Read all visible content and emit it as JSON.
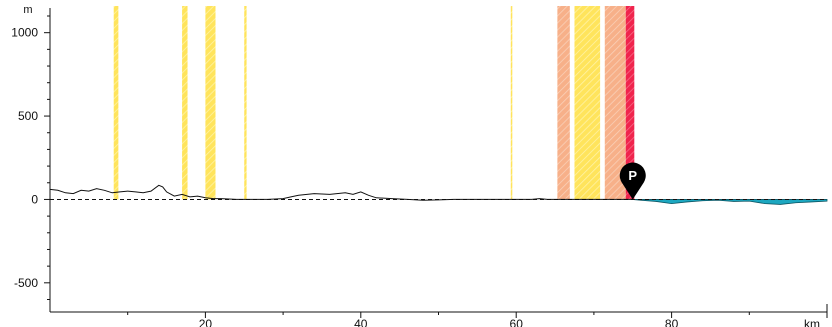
{
  "chart_data": {
    "type": "area",
    "title": "",
    "xlabel": "",
    "ylabel": "",
    "x_unit": "km",
    "y_unit": "m",
    "xlim": [
      0,
      100
    ],
    "ylim": [
      -675,
      1160
    ],
    "x_ticks": [
      20,
      40,
      60,
      80
    ],
    "y_ticks": [
      -500,
      0,
      500,
      1000
    ],
    "grid": false,
    "legend": "none",
    "colors": {
      "yellow": "#FFE45C",
      "orange": "#F7B089",
      "red": "#F0244D",
      "water": "#1CA7C0",
      "profile": "#111111",
      "marker": "#000000"
    },
    "zones": [
      {
        "x0": 8.2,
        "x1": 8.8,
        "level": "yellow"
      },
      {
        "x0": 17.0,
        "x1": 17.7,
        "level": "yellow"
      },
      {
        "x0": 20.0,
        "x1": 21.3,
        "level": "yellow"
      },
      {
        "x0": 25.0,
        "x1": 25.3,
        "level": "yellow"
      },
      {
        "x0": 59.3,
        "x1": 59.5,
        "level": "yellow"
      },
      {
        "x0": 65.3,
        "x1": 66.9,
        "level": "orange"
      },
      {
        "x0": 67.5,
        "x1": 70.8,
        "level": "yellow"
      },
      {
        "x0": 71.4,
        "x1": 74.1,
        "level": "orange"
      },
      {
        "x0": 74.1,
        "x1": 75.2,
        "level": "red"
      }
    ],
    "series": [
      {
        "x": [
          0,
          1,
          2,
          3,
          4,
          5,
          6,
          7,
          8,
          9,
          10,
          11,
          12,
          13,
          14,
          14.5,
          15,
          16,
          17,
          18,
          19,
          20,
          21,
          22,
          24,
          26,
          28,
          30,
          31,
          32,
          34,
          36,
          38,
          39,
          40,
          41,
          42,
          44,
          46,
          48,
          50,
          52,
          54,
          56,
          58,
          60,
          62,
          63,
          64,
          65,
          66,
          67,
          68,
          70,
          72,
          74,
          75
        ],
        "values": [
          60,
          55,
          40,
          35,
          55,
          50,
          65,
          55,
          40,
          45,
          50,
          45,
          40,
          50,
          85,
          75,
          45,
          20,
          30,
          15,
          20,
          10,
          5,
          5,
          0,
          0,
          0,
          5,
          15,
          25,
          35,
          30,
          40,
          30,
          45,
          25,
          10,
          5,
          0,
          -5,
          -3,
          0,
          0,
          0,
          0,
          0,
          0,
          5,
          0,
          0,
          0,
          0,
          0,
          0,
          0,
          0,
          0
        ]
      }
    ],
    "water_depth": {
      "x": [
        75,
        76,
        78,
        80,
        82,
        84,
        86,
        88,
        90,
        92,
        94,
        96,
        98,
        100
      ],
      "values": [
        0,
        -5,
        -12,
        -25,
        -15,
        -8,
        -5,
        -12,
        -10,
        -25,
        -30,
        -20,
        -15,
        -10
      ]
    },
    "annotations": [
      {
        "x": 75,
        "y": 0,
        "label": "P"
      }
    ]
  }
}
